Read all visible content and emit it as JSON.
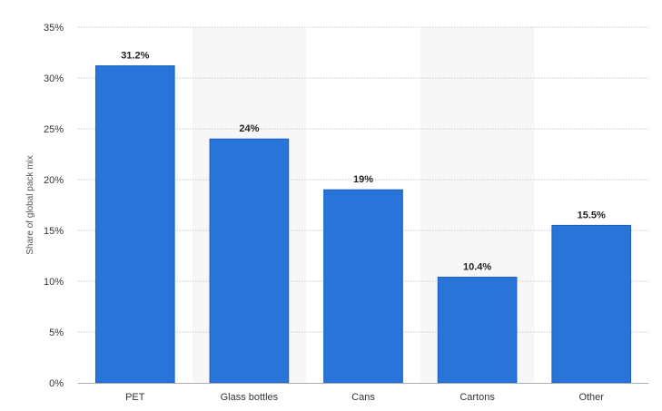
{
  "chart_data": {
    "type": "bar",
    "categories": [
      "PET",
      "Glass bottles",
      "Cans",
      "Cartons",
      "Other"
    ],
    "values": [
      31.2,
      24,
      19,
      10.4,
      15.5
    ],
    "data_labels": [
      "31.2%",
      "24%",
      "19%",
      "10.4%",
      "15.5%"
    ],
    "title": "",
    "xlabel": "",
    "ylabel": "Share of global pack mix",
    "ylim": [
      0,
      35
    ],
    "yticks": [
      0,
      5,
      10,
      15,
      20,
      25,
      30,
      35
    ],
    "ytick_labels": [
      "0%",
      "5%",
      "10%",
      "15%",
      "20%",
      "25%",
      "30%",
      "35%"
    ],
    "grid": true,
    "legend": "none",
    "colors": {
      "bar": "#2874d9",
      "bar_edge": "#1a5fbf",
      "band": "#f7f7f7",
      "grid": "#c8c8c8"
    }
  }
}
